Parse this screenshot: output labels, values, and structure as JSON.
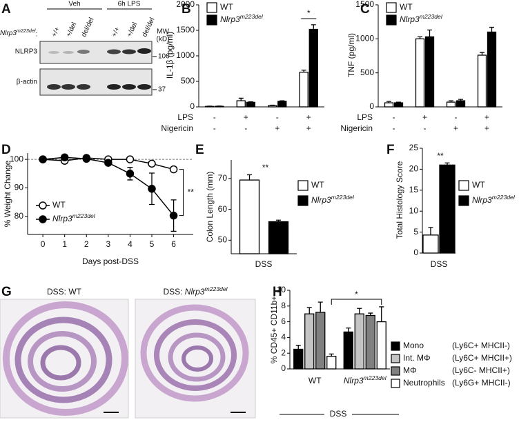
{
  "blot": {
    "panel": "A",
    "genotype_label": "Nlrp3m223del:",
    "conditions": [
      "Veh",
      "6h LPS"
    ],
    "lanes": [
      "+/+",
      "+/del",
      "del/del",
      "+/+",
      "+/del",
      "del/del"
    ],
    "proteins": [
      "NLRP3",
      "β-actin"
    ],
    "mw_header": [
      "MW",
      "(kD)"
    ],
    "mw_markers": [
      100,
      37
    ]
  },
  "histology": {
    "panel": "G",
    "titles": [
      "DSS:  WT",
      "DSS:  Nlrp3m223del"
    ]
  },
  "chart_data": [
    {
      "type": "bar",
      "panel": "B",
      "ylabel": "IL-1β (pg/ml)",
      "ylim": [
        0,
        2000
      ],
      "yticks": [
        0,
        500,
        1000,
        1500,
        2000
      ],
      "series": [
        {
          "name": "WT",
          "color": "#ffffff",
          "values": [
            10,
            120,
            25,
            680
          ],
          "errors": [
            5,
            50,
            8,
            40
          ]
        },
        {
          "name": "Nlrp3m223del",
          "color": "#000000",
          "values": [
            12,
            90,
            110,
            1520
          ],
          "errors": [
            4,
            10,
            10,
            90
          ]
        }
      ],
      "treatments": [
        {
          "label": "LPS",
          "values": [
            "-",
            "+",
            "-",
            "+"
          ]
        },
        {
          "label": "Nigericin",
          "values": [
            "-",
            "-",
            "+",
            "+"
          ]
        }
      ],
      "annotations": [
        "*"
      ]
    },
    {
      "type": "bar",
      "panel": "C",
      "ylabel": "TNF (pg/ml)",
      "ylim": [
        0,
        1500
      ],
      "yticks": [
        0,
        500,
        1000,
        1500
      ],
      "series": [
        {
          "name": "WT",
          "color": "#ffffff",
          "values": [
            60,
            1000,
            70,
            760
          ],
          "errors": [
            20,
            30,
            20,
            40
          ]
        },
        {
          "name": "Nlrp3m223del",
          "color": "#000000",
          "values": [
            60,
            1030,
            90,
            1100
          ],
          "errors": [
            10,
            100,
            20,
            70
          ]
        }
      ],
      "treatments": [
        {
          "label": "LPS",
          "values": [
            "-",
            "+",
            "-",
            "+"
          ]
        },
        {
          "label": "Nigericin",
          "values": [
            "-",
            "-",
            "+",
            "+"
          ]
        }
      ],
      "annotations": []
    },
    {
      "type": "line",
      "panel": "D",
      "xlabel": "Days post-DSS",
      "ylabel": "% Weight Change",
      "x": [
        0,
        1,
        2,
        3,
        4,
        5,
        6
      ],
      "xlim": [
        -0.7,
        6.9
      ],
      "xticks": [
        0,
        1,
        2,
        3,
        4,
        5,
        6
      ],
      "ylim": [
        73.7,
        102.2
      ],
      "yticks": [
        80,
        90,
        100
      ],
      "reference_line": 100,
      "series": [
        {
          "name": "WT",
          "color": "#ffffff",
          "values": [
            100,
            99.5,
            100.5,
            100,
            100,
            98.5,
            96.5
          ],
          "errors": [
            0,
            0.3,
            0.3,
            0.3,
            0.3,
            0.5,
            0.6
          ]
        },
        {
          "name": "Nlrp3m223del",
          "color": "#000000",
          "values": [
            100,
            100.7,
            100.2,
            98.8,
            95,
            89.7,
            80.3
          ],
          "errors": [
            0,
            0.3,
            0.5,
            0.6,
            2.2,
            5.5,
            5.5
          ]
        }
      ],
      "annotations": [
        "**"
      ]
    },
    {
      "type": "bar",
      "panel": "E",
      "ylabel": "Colon Length (mm)",
      "xlabel": "DSS",
      "ylim": [
        45.6,
        76
      ],
      "yticks": [
        50,
        60,
        70
      ],
      "series": [
        {
          "name": "WT",
          "color": "#ffffff",
          "values": [
            69.5
          ],
          "errors": [
            1.7
          ]
        },
        {
          "name": "Nlrp3m223del",
          "color": "#000000",
          "values": [
            56
          ],
          "errors": [
            0.5
          ]
        }
      ],
      "annotations": [
        "**"
      ]
    },
    {
      "type": "bar",
      "panel": "F",
      "ylabel": "Total Histology Score",
      "xlabel": "DSS",
      "ylim": [
        0,
        25
      ],
      "yticks": [
        0,
        5,
        10,
        15,
        20,
        25
      ],
      "series": [
        {
          "name": "WT",
          "color": "#ffffff",
          "values": [
            4.3
          ],
          "errors": [
            1.8
          ]
        },
        {
          "name": "Nlrp3m223del",
          "color": "#000000",
          "values": [
            21
          ],
          "errors": [
            0.5
          ]
        }
      ],
      "annotations": [
        "**"
      ]
    },
    {
      "type": "bar",
      "panel": "H",
      "ylabel": "% CD45+ CD11b+",
      "xlabel": "DSS",
      "categories": [
        "WT",
        "Nlrp3m223del"
      ],
      "ylim": [
        0,
        10
      ],
      "yticks": [
        0,
        2,
        4,
        6,
        8,
        10
      ],
      "series": [
        {
          "name": "Mono",
          "description": "(Ly6C+ MHCII-)",
          "color": "#000000",
          "values": [
            2.5,
            4.7
          ],
          "errors": [
            0.5,
            0.5
          ]
        },
        {
          "name": "Int. MΦ",
          "description": "(Ly6C+ MHCII+)",
          "color": "#c4c4c4",
          "values": [
            7,
            7
          ],
          "errors": [
            0.8,
            0.7
          ]
        },
        {
          "name": "MΦ",
          "description": "(Ly6C- MHCII+)",
          "color": "#808080",
          "values": [
            7.2,
            6.8
          ],
          "errors": [
            1.3,
            0.3
          ]
        },
        {
          "name": "Neutrophils",
          "description": "(Ly6G+ MHCII-)",
          "color": "#ffffff",
          "values": [
            1.6,
            6
          ],
          "errors": [
            0.3,
            1.9
          ]
        }
      ],
      "annotations": [
        "*"
      ]
    }
  ]
}
